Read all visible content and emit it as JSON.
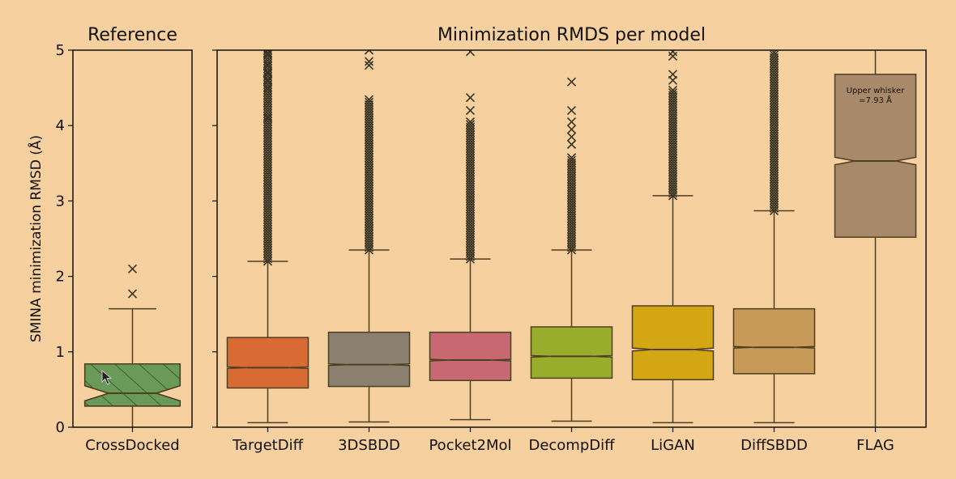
{
  "chart_data": [
    {
      "type": "box",
      "title": "Reference",
      "ylabel": "SMINA minimization RMSD (Å)",
      "ylim": [
        0,
        5
      ],
      "yticks": [
        "0",
        "1",
        "2",
        "3",
        "4",
        "5"
      ],
      "categories": [
        "CrossDocked"
      ],
      "boxes": [
        {
          "name": "CrossDocked",
          "color": "#6a9a58",
          "hatch": true,
          "whislo": 0.0,
          "q1": 0.28,
          "med": 0.45,
          "q3": 0.84,
          "whishi": 1.57,
          "notch_half": 0.1,
          "outliers": [
            1.77,
            2.1
          ]
        }
      ]
    },
    {
      "type": "box",
      "title": "Minimization RMDS per model",
      "ylim": [
        0,
        5
      ],
      "categories": [
        "TargetDiff",
        "3DSBDD",
        "Pocket2Mol",
        "DecompDiff",
        "LiGAN",
        "DiffSBDD",
        "FLAG"
      ],
      "boxes": [
        {
          "name": "TargetDiff",
          "color": "#d96a33",
          "whislo": 0.06,
          "q1": 0.52,
          "med": 0.79,
          "q3": 1.19,
          "whishi": 2.2,
          "notch_half": 0.01,
          "outliers_range": [
            2.2,
            5.0
          ],
          "outliers_sparse": [
            4.1,
            4.3,
            4.5,
            4.6,
            4.7,
            4.8,
            4.95
          ]
        },
        {
          "name": "3DSBDD",
          "color": "#8b8070",
          "whislo": 0.07,
          "q1": 0.54,
          "med": 0.83,
          "q3": 1.26,
          "whishi": 2.35,
          "notch_half": 0.01,
          "outliers_range": [
            2.35,
            4.35
          ],
          "outliers_sparse": [
            4.8,
            4.85,
            5.0
          ]
        },
        {
          "name": "Pocket2Mol",
          "color": "#c86870",
          "whislo": 0.1,
          "q1": 0.62,
          "med": 0.89,
          "q3": 1.26,
          "whishi": 2.23,
          "notch_half": 0.01,
          "outliers_range": [
            2.23,
            4.05
          ],
          "outliers_sparse": [
            4.2,
            4.37,
            4.98
          ]
        },
        {
          "name": "DecompDiff",
          "color": "#98ad2c",
          "whislo": 0.08,
          "q1": 0.65,
          "med": 0.94,
          "q3": 1.33,
          "whishi": 2.35,
          "notch_half": 0.01,
          "outliers_range": [
            2.35,
            3.6
          ],
          "outliers_sparse": [
            3.75,
            3.85,
            3.95,
            4.05,
            4.2,
            4.58
          ]
        },
        {
          "name": "LiGAN",
          "color": "#d4a614",
          "whislo": 0.06,
          "q1": 0.63,
          "med": 1.03,
          "q3": 1.61,
          "whishi": 3.07,
          "notch_half": 0.02,
          "outliers_range": [
            3.07,
            4.5
          ],
          "outliers_sparse": [
            4.6,
            4.68,
            4.92,
            4.98
          ]
        },
        {
          "name": "DiffSBDD",
          "color": "#c89a58",
          "whislo": 0.06,
          "q1": 0.71,
          "med": 1.06,
          "q3": 1.57,
          "whishi": 2.87,
          "notch_half": 0.01,
          "outliers_range": [
            2.87,
            5.0
          ],
          "outliers_sparse": []
        },
        {
          "name": "FLAG",
          "color": "#a8896a",
          "whislo": 0.0,
          "q1": 2.52,
          "med": 3.53,
          "q3": 4.68,
          "whishi": 7.93,
          "notch_half": 0.05,
          "outliers_range": null,
          "outliers_sparse": []
        }
      ],
      "annotations": [
        {
          "category": "FLAG",
          "lines": [
            "Upper whisker",
            "=7.93 Å"
          ]
        }
      ]
    }
  ]
}
